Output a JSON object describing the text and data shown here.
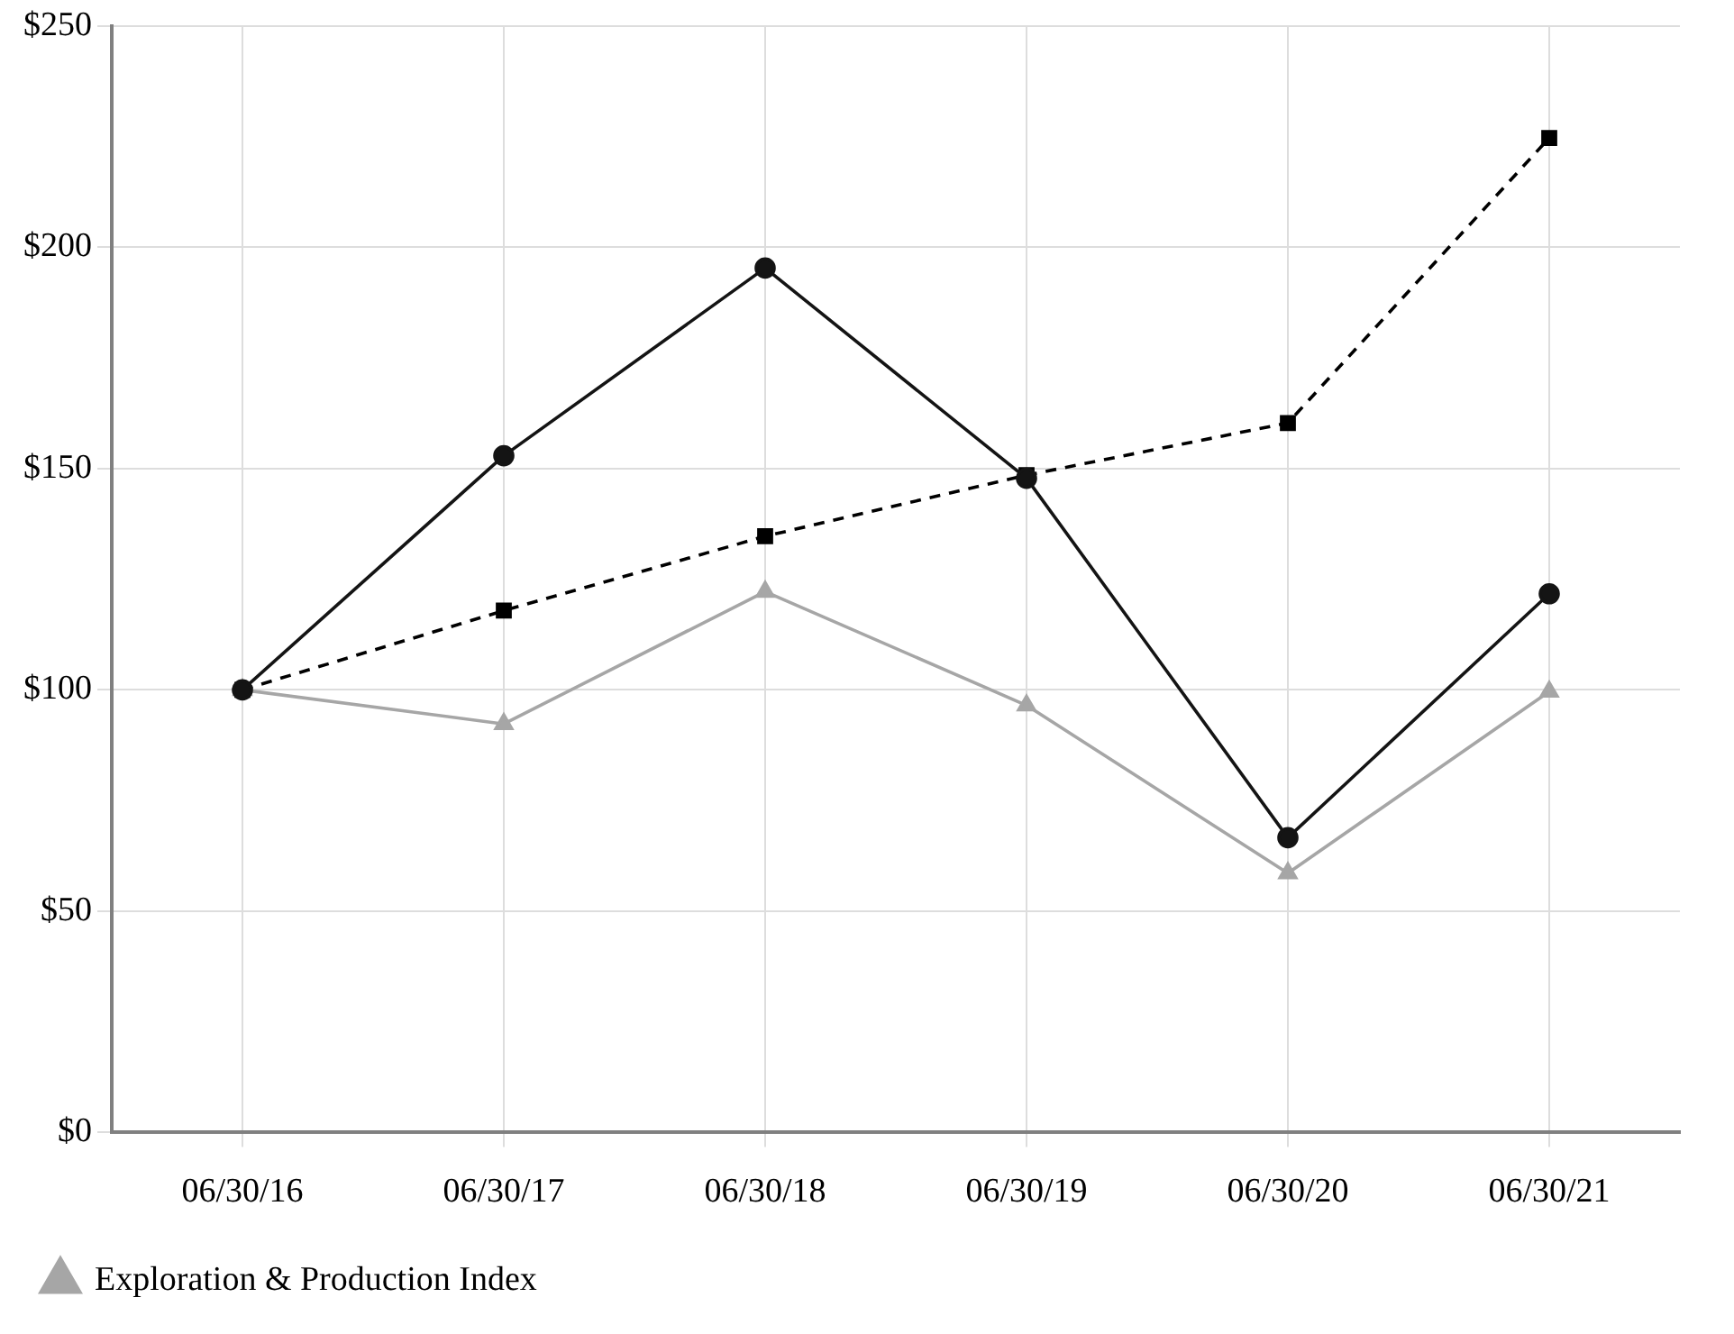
{
  "chart_data": {
    "type": "line",
    "categories": [
      "06/30/16",
      "06/30/17",
      "06/30/18",
      "06/30/19",
      "06/30/20",
      "06/30/21"
    ],
    "series": [
      {
        "color": "#141414",
        "marker": "circle",
        "line_style": "solid",
        "values": [
          100,
          152.9,
          195.3,
          147.8,
          66.6,
          121.7
        ]
      },
      {
        "color": "#000000",
        "marker": "square",
        "line_style": "dashed",
        "values": [
          100,
          117.9,
          134.7,
          148.5,
          160.3,
          224.7
        ]
      },
      {
        "name": "Exploration & Production Index",
        "color": "#a6a6a6",
        "marker": "triangle",
        "line_style": "solid",
        "values": [
          100,
          92.3,
          122.2,
          96.5,
          58.6,
          99.6
        ]
      }
    ],
    "ylim": [
      0,
      250
    ],
    "yticks": [
      {
        "value": 0,
        "label": "$0"
      },
      {
        "value": 50,
        "label": "$50"
      },
      {
        "value": 100,
        "label": "$100"
      },
      {
        "value": 150,
        "label": "$150"
      },
      {
        "value": 200,
        "label": "$200"
      },
      {
        "value": 250,
        "label": "$250"
      }
    ],
    "grid": true,
    "legend": "bottom"
  }
}
